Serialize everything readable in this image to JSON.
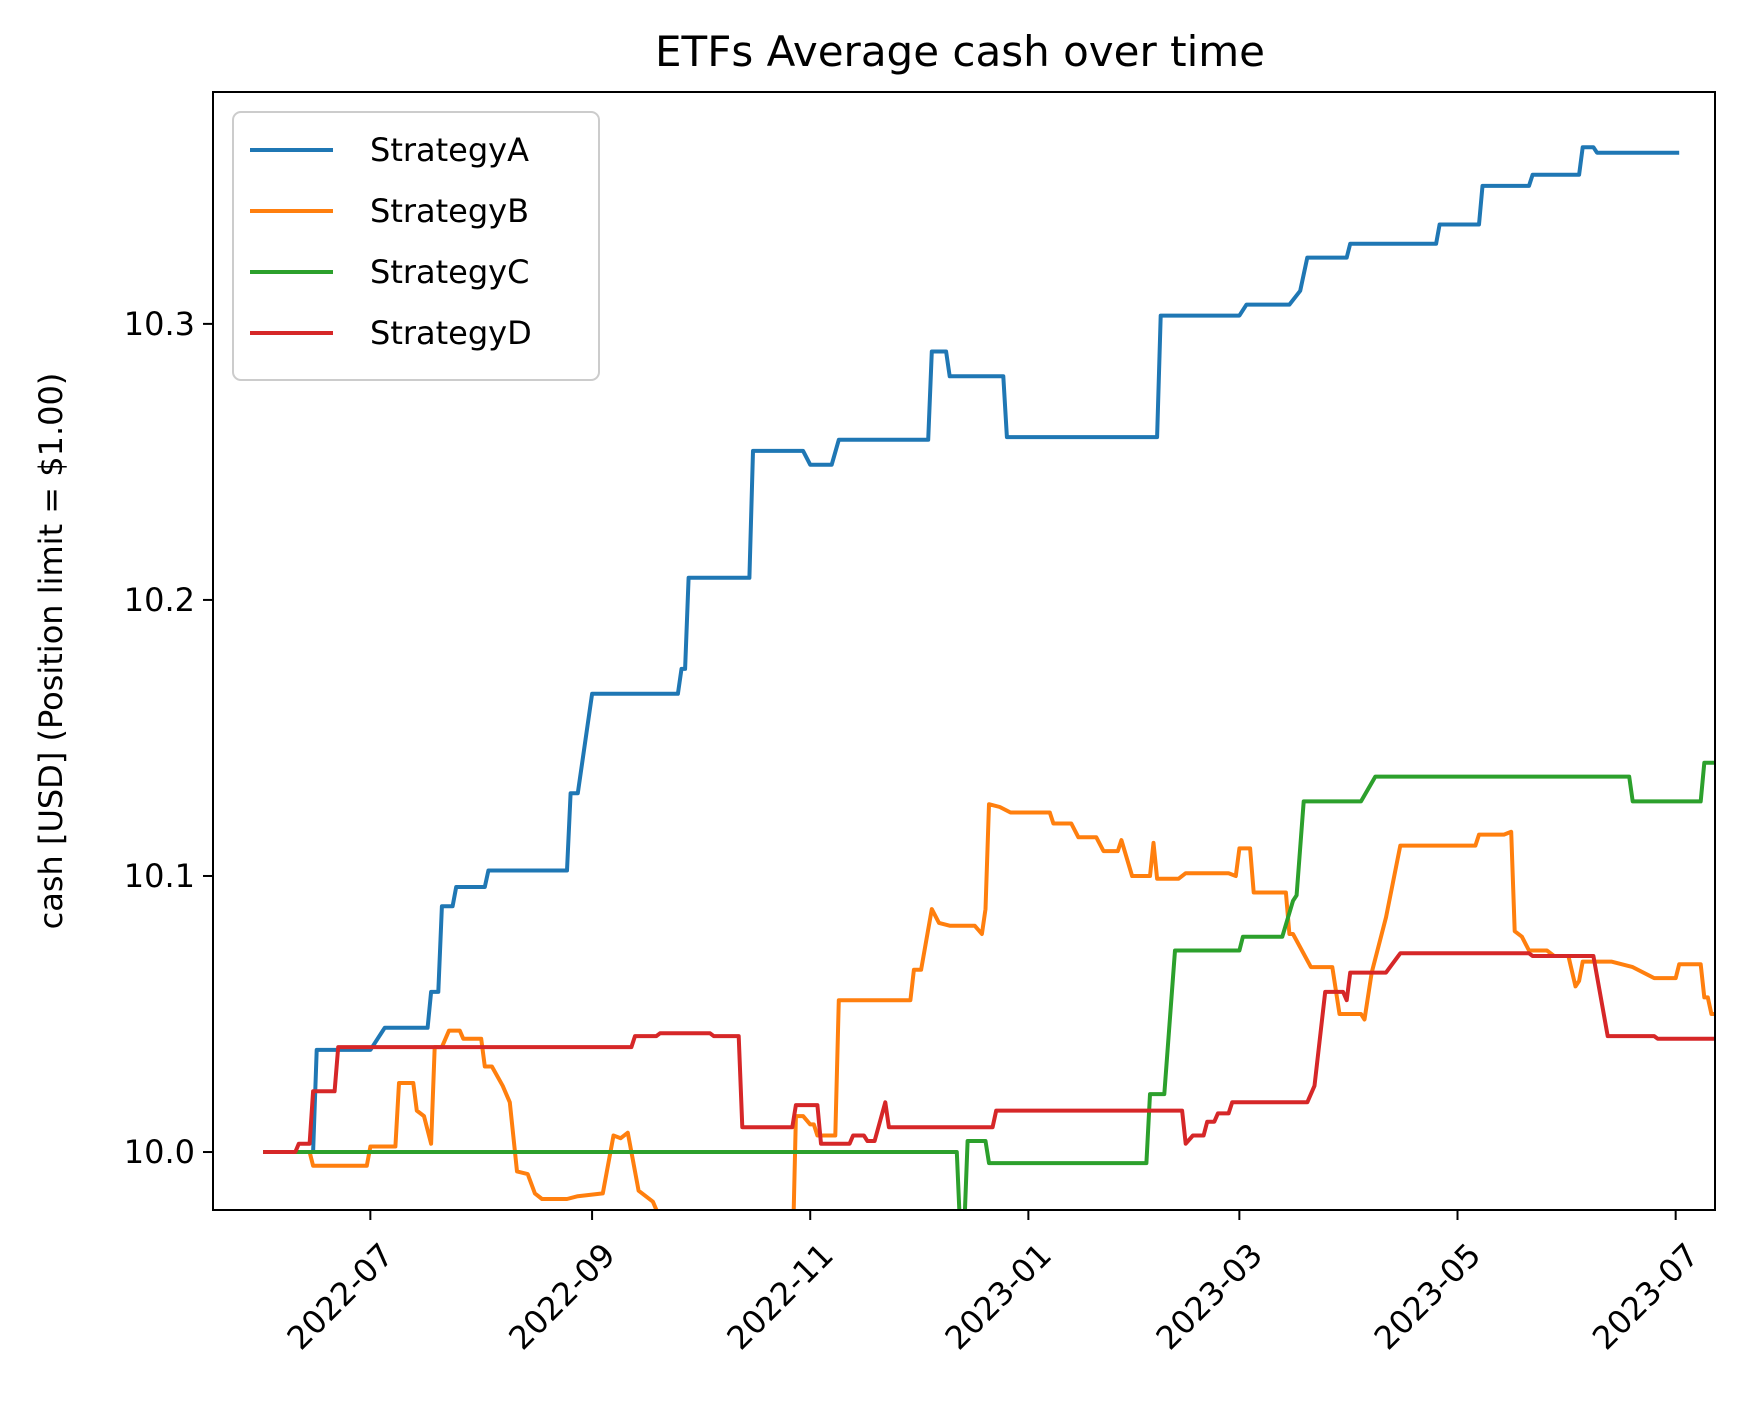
{
  "chart_data": {
    "type": "line",
    "title": "ETFs Average cash over time",
    "ylabel": "cash [USD] (Position limit = $1.00)",
    "xlabel": "",
    "x_range": [
      "2022-05-18",
      "2023-07-12"
    ],
    "ylim": [
      9.979,
      10.384
    ],
    "x_ticks": [
      "2022-07",
      "2022-09",
      "2022-11",
      "2023-01",
      "2023-03",
      "2023-05",
      "2023-07"
    ],
    "y_ticks": [
      "10.0",
      "10.1",
      "10.2",
      "10.3"
    ],
    "grid": false,
    "legend": "top-left",
    "series": [
      {
        "name": "StrategyA",
        "color": "#1f77b4",
        "points": [
          [
            "2022-06-01",
            10.0
          ],
          [
            "2022-06-15",
            10.0
          ],
          [
            "2022-06-16",
            10.037
          ],
          [
            "2022-07-01",
            10.037
          ],
          [
            "2022-07-05",
            10.045
          ],
          [
            "2022-07-17",
            10.045
          ],
          [
            "2022-07-18",
            10.058
          ],
          [
            "2022-07-20",
            10.058
          ],
          [
            "2022-07-21",
            10.089
          ],
          [
            "2022-07-24",
            10.089
          ],
          [
            "2022-07-25",
            10.096
          ],
          [
            "2022-08-02",
            10.096
          ],
          [
            "2022-08-03",
            10.102
          ],
          [
            "2022-08-25",
            10.102
          ],
          [
            "2022-08-26",
            10.13
          ],
          [
            "2022-08-28",
            10.13
          ],
          [
            "2022-09-01",
            10.166
          ],
          [
            "2022-09-25",
            10.166
          ],
          [
            "2022-09-26",
            10.175
          ],
          [
            "2022-09-27",
            10.175
          ],
          [
            "2022-09-28",
            10.208
          ],
          [
            "2022-10-15",
            10.208
          ],
          [
            "2022-10-16",
            10.254
          ],
          [
            "2022-10-30",
            10.254
          ],
          [
            "2022-11-01",
            10.249
          ],
          [
            "2022-11-07",
            10.249
          ],
          [
            "2022-11-09",
            10.258
          ],
          [
            "2022-12-04",
            10.258
          ],
          [
            "2022-12-05",
            10.29
          ],
          [
            "2022-12-09",
            10.29
          ],
          [
            "2022-12-10",
            10.281
          ],
          [
            "2022-12-25",
            10.281
          ],
          [
            "2022-12-26",
            10.259
          ],
          [
            "2023-02-06",
            10.259
          ],
          [
            "2023-02-07",
            10.303
          ],
          [
            "2023-03-01",
            10.303
          ],
          [
            "2023-03-03",
            10.307
          ],
          [
            "2023-03-15",
            10.307
          ],
          [
            "2023-03-18",
            10.312
          ],
          [
            "2023-03-20",
            10.324
          ],
          [
            "2023-03-31",
            10.324
          ],
          [
            "2023-04-01",
            10.329
          ],
          [
            "2023-04-25",
            10.329
          ],
          [
            "2023-04-26",
            10.336
          ],
          [
            "2023-05-07",
            10.336
          ],
          [
            "2023-05-08",
            10.35
          ],
          [
            "2023-05-21",
            10.35
          ],
          [
            "2023-05-22",
            10.354
          ],
          [
            "2023-06-04",
            10.354
          ],
          [
            "2023-06-05",
            10.364
          ],
          [
            "2023-06-08",
            10.364
          ],
          [
            "2023-06-09",
            10.362
          ],
          [
            "2023-07-02",
            10.362
          ]
        ]
      },
      {
        "name": "StrategyB",
        "color": "#ff7f0e",
        "points": [
          [
            "2022-06-01",
            10.0
          ],
          [
            "2022-06-10",
            10.0
          ],
          [
            "2022-06-14",
            10.0
          ],
          [
            "2022-06-15",
            9.995
          ],
          [
            "2022-06-30",
            9.995
          ],
          [
            "2022-07-01",
            10.002
          ],
          [
            "2022-07-08",
            10.002
          ],
          [
            "2022-07-09",
            10.025
          ],
          [
            "2022-07-13",
            10.025
          ],
          [
            "2022-07-14",
            10.015
          ],
          [
            "2022-07-16",
            10.013
          ],
          [
            "2022-07-18",
            10.003
          ],
          [
            "2022-07-19",
            10.038
          ],
          [
            "2022-07-21",
            10.038
          ],
          [
            "2022-07-23",
            10.044
          ],
          [
            "2022-07-26",
            10.044
          ],
          [
            "2022-07-27",
            10.041
          ],
          [
            "2022-08-01",
            10.041
          ],
          [
            "2022-08-02",
            10.031
          ],
          [
            "2022-08-04",
            10.031
          ],
          [
            "2022-08-07",
            10.024
          ],
          [
            "2022-08-09",
            10.018
          ],
          [
            "2022-08-11",
            9.993
          ],
          [
            "2022-08-14",
            9.992
          ],
          [
            "2022-08-16",
            9.985
          ],
          [
            "2022-08-18",
            9.983
          ],
          [
            "2022-08-25",
            9.983
          ],
          [
            "2022-08-28",
            9.984
          ],
          [
            "2022-09-04",
            9.985
          ],
          [
            "2022-09-07",
            10.006
          ],
          [
            "2022-09-09",
            10.005
          ],
          [
            "2022-09-11",
            10.007
          ],
          [
            "2022-09-14",
            9.986
          ],
          [
            "2022-09-18",
            9.982
          ],
          [
            "2022-09-20",
            9.976
          ],
          [
            "2022-09-23",
            9.967
          ],
          [
            "2022-09-27",
            9.959
          ],
          [
            "2022-09-29",
            9.959
          ],
          [
            "2022-10-02",
            9.958
          ],
          [
            "2022-10-03",
            9.943
          ],
          [
            "2022-10-07",
            9.943
          ],
          [
            "2022-10-08",
            9.953
          ],
          [
            "2022-10-13",
            9.953
          ],
          [
            "2022-10-15",
            9.959
          ],
          [
            "2022-10-20",
            9.959
          ],
          [
            "2022-10-21",
            9.957
          ],
          [
            "2022-10-27",
            9.957
          ],
          [
            "2022-10-28",
            10.013
          ],
          [
            "2022-10-30",
            10.013
          ],
          [
            "2022-11-01",
            10.01
          ],
          [
            "2022-11-02",
            10.01
          ],
          [
            "2022-11-03",
            10.006
          ],
          [
            "2022-11-08",
            10.006
          ],
          [
            "2022-11-09",
            10.055
          ],
          [
            "2022-11-29",
            10.055
          ],
          [
            "2022-11-30",
            10.066
          ],
          [
            "2022-12-02",
            10.066
          ],
          [
            "2022-12-05",
            10.088
          ],
          [
            "2022-12-07",
            10.083
          ],
          [
            "2022-12-10",
            10.082
          ],
          [
            "2022-12-17",
            10.082
          ],
          [
            "2022-12-19",
            10.079
          ],
          [
            "2022-12-20",
            10.088
          ],
          [
            "2022-12-21",
            10.126
          ],
          [
            "2022-12-24",
            10.125
          ],
          [
            "2022-12-27",
            10.123
          ],
          [
            "2023-01-07",
            10.123
          ],
          [
            "2023-01-08",
            10.119
          ],
          [
            "2023-01-13",
            10.119
          ],
          [
            "2023-01-15",
            10.114
          ],
          [
            "2023-01-20",
            10.114
          ],
          [
            "2023-01-22",
            10.109
          ],
          [
            "2023-01-26",
            10.109
          ],
          [
            "2023-01-27",
            10.113
          ],
          [
            "2023-01-30",
            10.1
          ],
          [
            "2023-02-04",
            10.1
          ],
          [
            "2023-02-05",
            10.112
          ],
          [
            "2023-02-06",
            10.099
          ],
          [
            "2023-02-12",
            10.099
          ],
          [
            "2023-02-14",
            10.101
          ],
          [
            "2023-02-26",
            10.101
          ],
          [
            "2023-02-28",
            10.1
          ],
          [
            "2023-03-01",
            10.11
          ],
          [
            "2023-03-04",
            10.11
          ],
          [
            "2023-03-05",
            10.094
          ],
          [
            "2023-03-14",
            10.094
          ],
          [
            "2023-03-15",
            10.079
          ],
          [
            "2023-03-16",
            10.079
          ],
          [
            "2023-03-21",
            10.067
          ],
          [
            "2023-03-27",
            10.067
          ],
          [
            "2023-03-29",
            10.05
          ],
          [
            "2023-04-04",
            10.05
          ],
          [
            "2023-04-05",
            10.048
          ],
          [
            "2023-04-07",
            10.065
          ],
          [
            "2023-04-11",
            10.085
          ],
          [
            "2023-04-15",
            10.111
          ],
          [
            "2023-05-06",
            10.111
          ],
          [
            "2023-05-07",
            10.115
          ],
          [
            "2023-05-14",
            10.115
          ],
          [
            "2023-05-16",
            10.116
          ],
          [
            "2023-05-17",
            10.08
          ],
          [
            "2023-05-19",
            10.078
          ],
          [
            "2023-05-21",
            10.073
          ],
          [
            "2023-05-26",
            10.073
          ],
          [
            "2023-05-28",
            10.071
          ],
          [
            "2023-06-01",
            10.071
          ],
          [
            "2023-06-03",
            10.06
          ],
          [
            "2023-06-04",
            10.062
          ],
          [
            "2023-06-05",
            10.069
          ],
          [
            "2023-06-13",
            10.069
          ],
          [
            "2023-06-19",
            10.067
          ],
          [
            "2023-06-25",
            10.063
          ],
          [
            "2023-06-28",
            10.063
          ],
          [
            "2023-07-01",
            10.063
          ],
          [
            "2023-07-02",
            10.068
          ],
          [
            "2023-07-08",
            10.068
          ],
          [
            "2023-07-09",
            10.056
          ],
          [
            "2023-07-10",
            10.056
          ],
          [
            "2023-07-11",
            10.05
          ],
          [
            "2023-07-13",
            10.05
          ]
        ]
      },
      {
        "name": "StrategyC",
        "color": "#2ca02c",
        "points": [
          [
            "2022-06-01",
            10.0
          ],
          [
            "2022-12-12",
            10.0
          ],
          [
            "2022-12-13",
            9.97
          ],
          [
            "2022-12-14",
            9.97
          ],
          [
            "2022-12-15",
            10.004
          ],
          [
            "2022-12-20",
            10.004
          ],
          [
            "2022-12-21",
            9.996
          ],
          [
            "2023-02-03",
            9.996
          ],
          [
            "2023-02-04",
            10.021
          ],
          [
            "2023-02-08",
            10.021
          ],
          [
            "2023-02-11",
            10.073
          ],
          [
            "2023-03-01",
            10.073
          ],
          [
            "2023-03-02",
            10.078
          ],
          [
            "2023-03-13",
            10.078
          ],
          [
            "2023-03-16",
            10.091
          ],
          [
            "2023-03-17",
            10.093
          ],
          [
            "2023-03-19",
            10.127
          ],
          [
            "2023-04-04",
            10.127
          ],
          [
            "2023-04-08",
            10.136
          ],
          [
            "2023-06-18",
            10.136
          ],
          [
            "2023-06-19",
            10.127
          ],
          [
            "2023-07-08",
            10.127
          ],
          [
            "2023-07-09",
            10.141
          ],
          [
            "2023-07-16",
            10.141
          ],
          [
            "2023-07-18",
            10.142
          ],
          [
            "2023-07-25",
            10.142
          ]
        ]
      },
      {
        "name": "StrategyD",
        "color": "#d62728",
        "points": [
          [
            "2022-06-01",
            10.0
          ],
          [
            "2022-06-10",
            10.0
          ],
          [
            "2022-06-11",
            10.003
          ],
          [
            "2022-06-14",
            10.003
          ],
          [
            "2022-06-15",
            10.022
          ],
          [
            "2022-06-21",
            10.022
          ],
          [
            "2022-06-22",
            10.038
          ],
          [
            "2022-09-12",
            10.038
          ],
          [
            "2022-09-13",
            10.042
          ],
          [
            "2022-09-19",
            10.042
          ],
          [
            "2022-09-20",
            10.043
          ],
          [
            "2022-10-04",
            10.043
          ],
          [
            "2022-10-05",
            10.042
          ],
          [
            "2022-10-12",
            10.042
          ],
          [
            "2022-10-13",
            10.009
          ],
          [
            "2022-10-27",
            10.009
          ],
          [
            "2022-10-28",
            10.017
          ],
          [
            "2022-11-03",
            10.017
          ],
          [
            "2022-11-04",
            10.003
          ],
          [
            "2022-11-12",
            10.003
          ],
          [
            "2022-11-13",
            10.006
          ],
          [
            "2022-11-16",
            10.006
          ],
          [
            "2022-11-17",
            10.004
          ],
          [
            "2022-11-19",
            10.004
          ],
          [
            "2022-11-22",
            10.018
          ],
          [
            "2022-11-23",
            10.009
          ],
          [
            "2022-12-22",
            10.009
          ],
          [
            "2022-12-23",
            10.015
          ],
          [
            "2023-02-13",
            10.015
          ],
          [
            "2023-02-14",
            10.003
          ],
          [
            "2023-02-16",
            10.006
          ],
          [
            "2023-02-19",
            10.006
          ],
          [
            "2023-02-20",
            10.011
          ],
          [
            "2023-02-22",
            10.011
          ],
          [
            "2023-02-23",
            10.014
          ],
          [
            "2023-02-26",
            10.014
          ],
          [
            "2023-02-27",
            10.018
          ],
          [
            "2023-03-20",
            10.018
          ],
          [
            "2023-03-22",
            10.024
          ],
          [
            "2023-03-25",
            10.058
          ],
          [
            "2023-03-30",
            10.058
          ],
          [
            "2023-03-31",
            10.055
          ],
          [
            "2023-04-01",
            10.065
          ],
          [
            "2023-04-11",
            10.065
          ],
          [
            "2023-04-15",
            10.072
          ],
          [
            "2023-05-21",
            10.072
          ],
          [
            "2023-05-22",
            10.071
          ],
          [
            "2023-06-08",
            10.071
          ],
          [
            "2023-06-12",
            10.042
          ],
          [
            "2023-06-25",
            10.042
          ],
          [
            "2023-06-26",
            10.041
          ],
          [
            "2023-07-26",
            10.041
          ]
        ]
      }
    ]
  }
}
